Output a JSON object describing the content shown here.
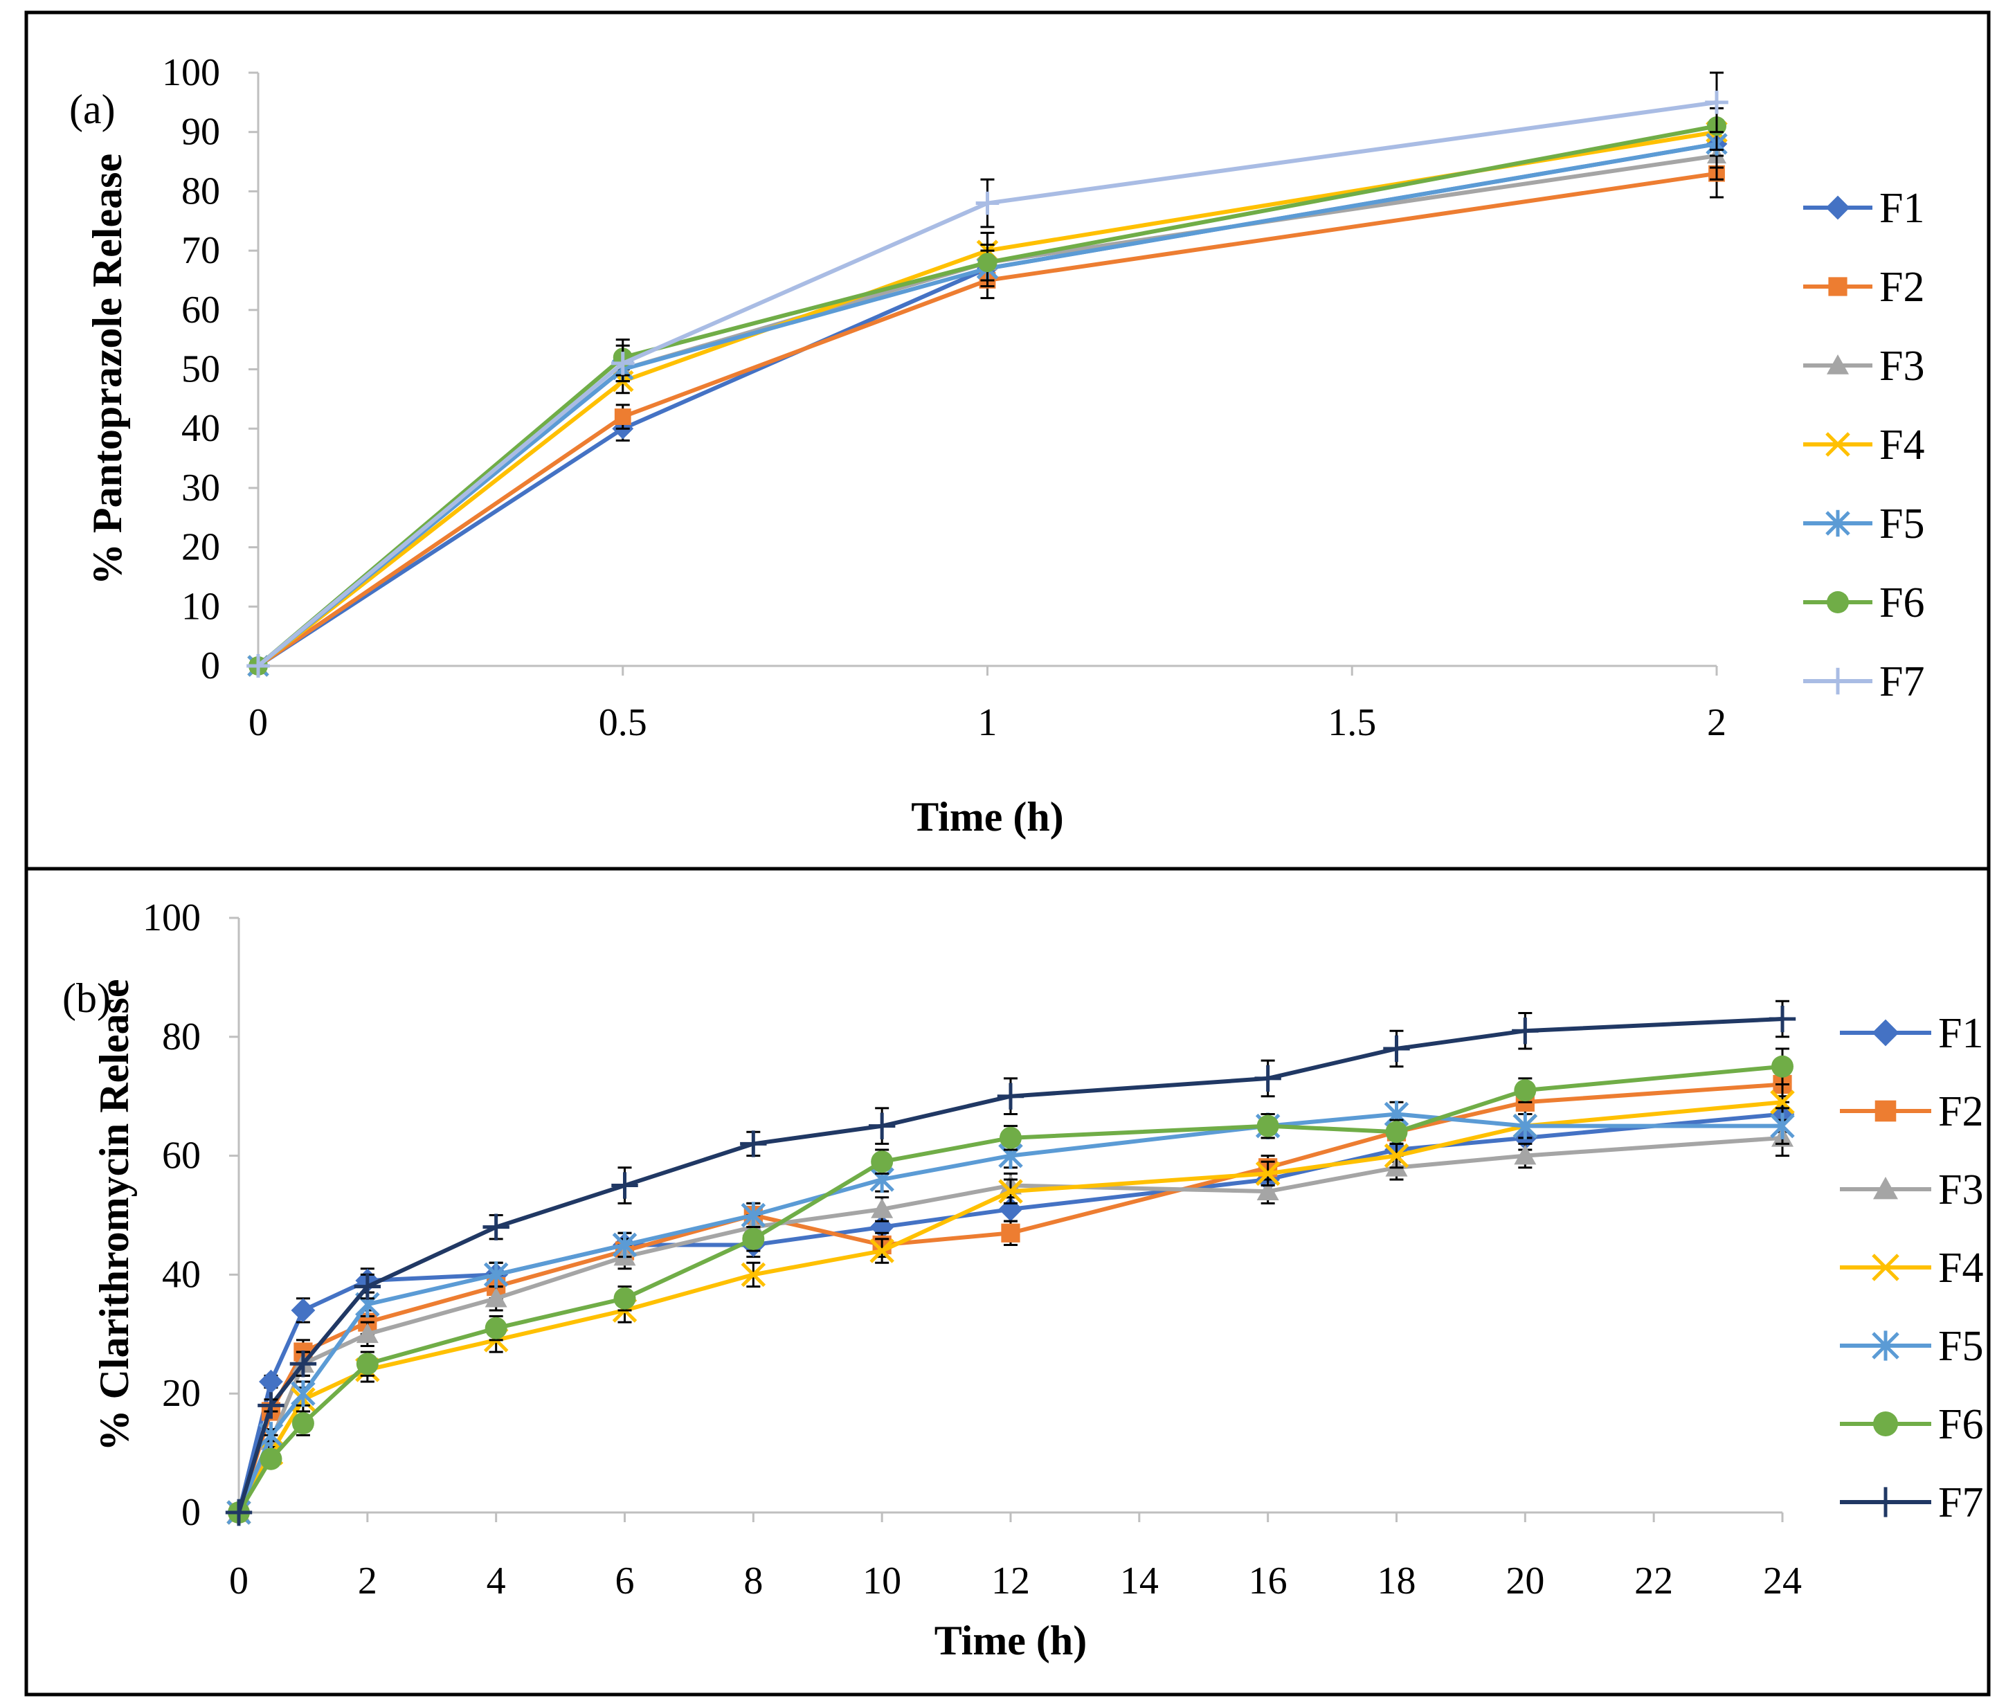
{
  "chart_data": [
    {
      "type": "line",
      "panel_label": "(a)",
      "xlabel": "Time (h)",
      "ylabel": "% Pantoprazole Release",
      "xlim": [
        0,
        2
      ],
      "ylim": [
        0,
        100
      ],
      "x_ticks": [
        "0",
        "0.5",
        "1",
        "1.5",
        "2"
      ],
      "y_ticks": [
        "0",
        "10",
        "20",
        "30",
        "40",
        "50",
        "60",
        "70",
        "80",
        "90",
        "100"
      ],
      "x_tick_values": [
        0,
        0.5,
        1,
        1.5,
        2
      ],
      "y_tick_values": [
        0,
        10,
        20,
        30,
        40,
        50,
        60,
        70,
        80,
        90,
        100
      ],
      "grid": false,
      "legend_position": "right",
      "x": [
        0,
        0.5,
        1,
        2
      ],
      "series": [
        {
          "name": "F1",
          "color": "#4472C4",
          "marker": "diamond",
          "values": [
            0,
            40,
            67,
            88
          ],
          "error": [
            0,
            2,
            3,
            4
          ]
        },
        {
          "name": "F2",
          "color": "#ED7D31",
          "marker": "square",
          "values": [
            0,
            42,
            65,
            83
          ],
          "error": [
            0,
            2,
            3,
            4
          ]
        },
        {
          "name": "F3",
          "color": "#A5A5A5",
          "marker": "triangle",
          "values": [
            0,
            50,
            68,
            86
          ],
          "error": [
            0,
            2,
            3,
            4
          ]
        },
        {
          "name": "F4",
          "color": "#FFC000",
          "marker": "x",
          "values": [
            0,
            48,
            70,
            90
          ],
          "error": [
            0,
            2,
            3,
            4
          ]
        },
        {
          "name": "F5",
          "color": "#5B9BD5",
          "marker": "asterisk",
          "values": [
            0,
            50,
            67,
            88
          ],
          "error": [
            0,
            2,
            3,
            4
          ]
        },
        {
          "name": "F6",
          "color": "#70AD47",
          "marker": "circle",
          "values": [
            0,
            52,
            68,
            91
          ],
          "error": [
            0,
            3,
            3,
            4
          ]
        },
        {
          "name": "F7",
          "color": "#A9BCE4",
          "marker": "plus",
          "values": [
            0,
            51,
            78,
            95
          ],
          "error": [
            0,
            3,
            4,
            5
          ]
        }
      ]
    },
    {
      "type": "line",
      "panel_label": "(b)",
      "xlabel": "Time (h)",
      "ylabel": "% Clarithromycin Release",
      "xlim": [
        0,
        24
      ],
      "ylim": [
        0,
        100
      ],
      "x_ticks": [
        "0",
        "2",
        "4",
        "6",
        "8",
        "10",
        "12",
        "14",
        "16",
        "18",
        "20",
        "22",
        "24"
      ],
      "y_ticks": [
        "0",
        "20",
        "40",
        "60",
        "80",
        "100"
      ],
      "x_tick_values": [
        0,
        2,
        4,
        6,
        8,
        10,
        12,
        14,
        16,
        18,
        20,
        22,
        24
      ],
      "y_tick_values": [
        0,
        20,
        40,
        60,
        80,
        100
      ],
      "grid": false,
      "legend_position": "right",
      "x": [
        0,
        0.5,
        1,
        2,
        4,
        6,
        8,
        10,
        12,
        16,
        18,
        20,
        24
      ],
      "series": [
        {
          "name": "F1",
          "color": "#4472C4",
          "marker": "diamond",
          "values": [
            0,
            22,
            34,
            39,
            40,
            45,
            45,
            48,
            51,
            56,
            61,
            63,
            67
          ],
          "error": [
            0,
            1,
            2,
            2,
            2,
            2,
            2,
            2,
            2,
            2,
            2,
            2,
            3
          ]
        },
        {
          "name": "F2",
          "color": "#ED7D31",
          "marker": "square",
          "values": [
            0,
            17,
            27,
            32,
            38,
            44,
            50,
            45,
            47,
            58,
            64,
            69,
            72
          ],
          "error": [
            0,
            1,
            2,
            2,
            2,
            2,
            2,
            2,
            2,
            2,
            2,
            2,
            3
          ]
        },
        {
          "name": "F3",
          "color": "#A5A5A5",
          "marker": "triangle",
          "values": [
            0,
            12,
            25,
            30,
            36,
            43,
            48,
            51,
            55,
            54,
            58,
            60,
            63
          ],
          "error": [
            0,
            1,
            2,
            2,
            2,
            2,
            2,
            2,
            2,
            2,
            2,
            2,
            3
          ]
        },
        {
          "name": "F4",
          "color": "#FFC000",
          "marker": "x",
          "values": [
            0,
            10,
            19,
            24,
            29,
            34,
            40,
            44,
            54,
            57,
            60,
            65,
            69
          ],
          "error": [
            0,
            1,
            2,
            2,
            2,
            2,
            2,
            2,
            2,
            2,
            2,
            2,
            3
          ]
        },
        {
          "name": "F5",
          "color": "#5B9BD5",
          "marker": "asterisk",
          "values": [
            0,
            13,
            20,
            35,
            40,
            45,
            50,
            56,
            60,
            65,
            67,
            65,
            65
          ],
          "error": [
            0,
            1,
            2,
            2,
            2,
            2,
            2,
            2,
            2,
            2,
            2,
            2,
            3
          ]
        },
        {
          "name": "F6",
          "color": "#70AD47",
          "marker": "circle",
          "values": [
            0,
            9,
            15,
            25,
            31,
            36,
            46,
            59,
            63,
            65,
            64,
            71,
            75
          ],
          "error": [
            0,
            1,
            2,
            2,
            2,
            2,
            2,
            2,
            2,
            2,
            2,
            2,
            3
          ]
        },
        {
          "name": "F7",
          "color": "#203864",
          "marker": "plus",
          "values": [
            0,
            18,
            25,
            38,
            48,
            55,
            62,
            65,
            70,
            73,
            78,
            81,
            83
          ],
          "error": [
            0,
            1,
            2,
            2,
            2,
            3,
            2,
            3,
            3,
            3,
            3,
            3,
            3
          ]
        }
      ]
    }
  ]
}
